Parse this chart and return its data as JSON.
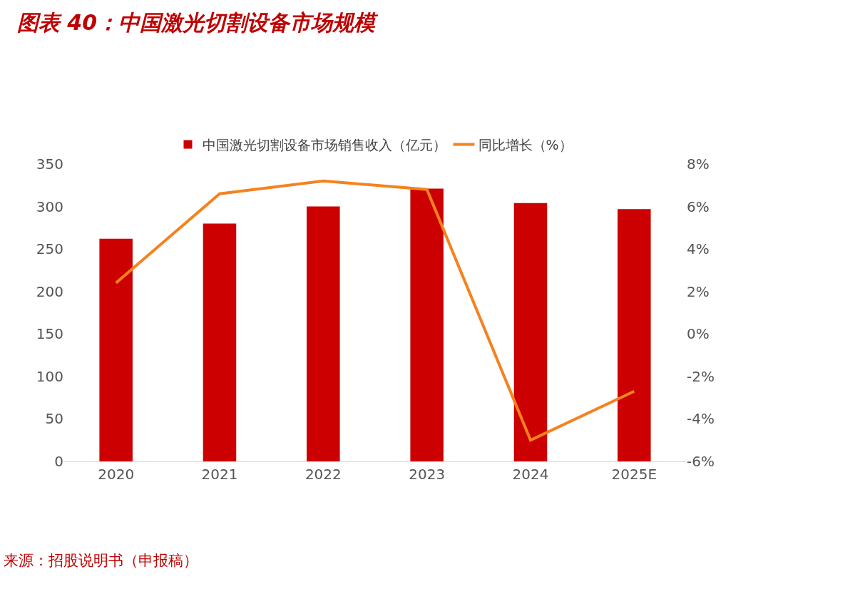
{
  "chart_data": {
    "type": "bar",
    "title": "图表 40：中国激光切割设备市场规模",
    "categories": [
      "2020",
      "2021",
      "2022",
      "2023",
      "2024",
      "2025E"
    ],
    "series": [
      {
        "name": "中国激光切割设备市场销售收入（亿元）",
        "color": "#cc0000",
        "values": [
          262,
          280,
          300,
          321,
          304,
          297
        ]
      },
      {
        "name": "同比增长（%）",
        "type": "line",
        "axis": "y2",
        "color": "#f5821f",
        "values": [
          2.4,
          6.6,
          7.2,
          6.8,
          -5.0,
          -2.7
        ]
      }
    ],
    "ylim": [
      0,
      350
    ],
    "yticks": [
      0,
      50,
      100,
      150,
      200,
      250,
      300,
      350
    ],
    "y2lim": [
      -6,
      8
    ],
    "y2ticks": [
      {
        "value": -6,
        "label": "-6%"
      },
      {
        "value": -4,
        "label": "-4%"
      },
      {
        "value": -2,
        "label": "-2%"
      },
      {
        "value": 0,
        "label": "0%"
      },
      {
        "value": 2,
        "label": "2%"
      },
      {
        "value": 4,
        "label": "4%"
      },
      {
        "value": 6,
        "label": "6%"
      },
      {
        "value": 8,
        "label": "8%"
      }
    ],
    "legend": "top",
    "grid": false,
    "marker": "none",
    "line_style": "solid",
    "annotations": [
      "来源：招股说明书（申报稿）"
    ]
  }
}
